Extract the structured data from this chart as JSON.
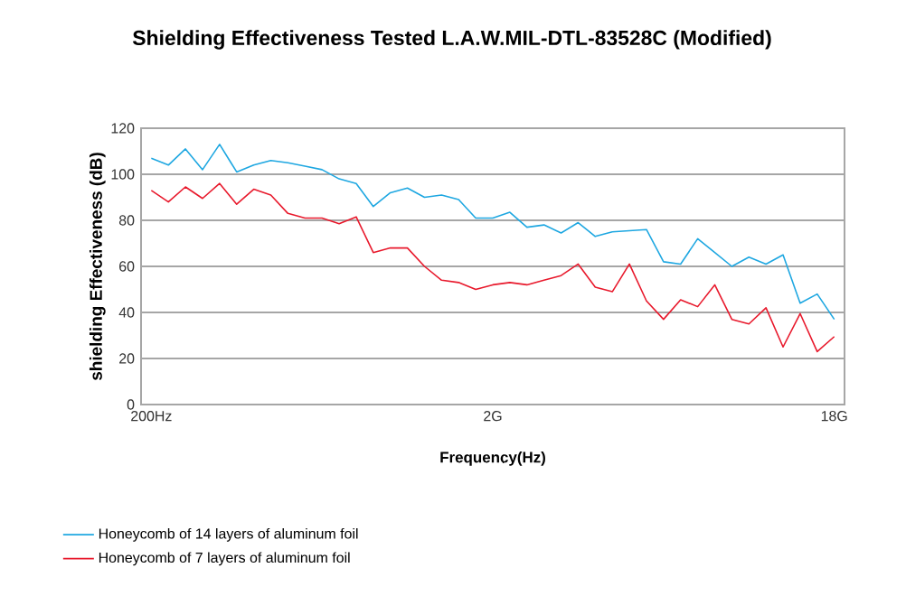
{
  "chart_data": {
    "type": "line",
    "title": "Shielding Effectiveness Tested L.A.W.MIL-DTL-83528C  (Modified)",
    "xlabel": "Frequency(Hz)",
    "ylabel": "shielding Effectiveness (dB)",
    "categories": [
      "200Hz",
      null,
      null,
      null,
      null,
      null,
      null,
      null,
      null,
      null,
      null,
      null,
      null,
      null,
      null,
      null,
      null,
      null,
      null,
      null,
      "2G",
      null,
      null,
      null,
      null,
      null,
      null,
      null,
      null,
      null,
      null,
      null,
      null,
      null,
      null,
      null,
      null,
      null,
      null,
      null,
      "18G"
    ],
    "series": [
      {
        "name": "Honeycomb of 14 layers of aluminum foil",
        "color": "#1ea7e1",
        "values": [
          107,
          104,
          111,
          102,
          113,
          101,
          104,
          106,
          105,
          103.5,
          102,
          98,
          96,
          86,
          92,
          94,
          90,
          91,
          89,
          81,
          81,
          83.5,
          77,
          78,
          74.5,
          79,
          73,
          75,
          75.5,
          76,
          62,
          61,
          72,
          66,
          60,
          64,
          61,
          65,
          44,
          48,
          37
        ]
      },
      {
        "name": "Honeycomb of 7 layers of aluminum foil",
        "color": "#e8192c",
        "values": [
          93,
          88,
          94.5,
          89.5,
          96,
          87,
          93.5,
          91,
          83,
          81,
          81,
          78.5,
          81.5,
          66,
          68,
          68,
          60,
          54,
          53,
          50,
          52,
          53,
          52,
          54,
          56,
          61,
          51,
          49,
          61,
          45,
          37,
          45.5,
          42.5,
          52,
          37,
          35,
          42,
          25,
          39.5,
          23,
          29.5
        ]
      }
    ],
    "ylim": [
      0,
      120
    ],
    "yticks": [
      0,
      20,
      40,
      60,
      80,
      100,
      120
    ],
    "grid": "y",
    "legend": "bottom",
    "marker": "none",
    "line_style": "solid"
  }
}
